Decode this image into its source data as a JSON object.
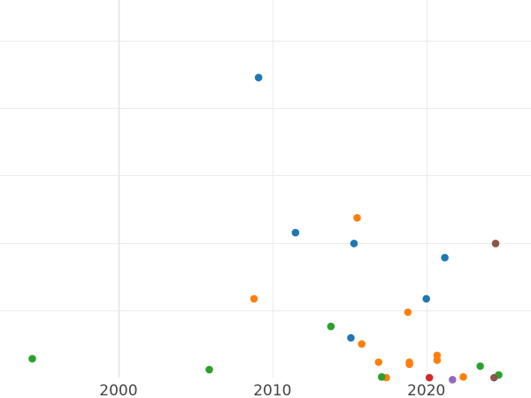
{
  "chart_data": {
    "type": "scatter",
    "title": "",
    "xlabel": "",
    "ylabel": "",
    "xlim": [
      1992.3,
      2026.8
    ],
    "ylim": [
      0,
      56
    ],
    "x_ticks": [
      2000,
      2010,
      2020
    ],
    "x_tick_labels": [
      "2000",
      "2010",
      "2020"
    ],
    "y_gridlines": [
      10,
      20,
      30,
      40,
      50
    ],
    "grid": true,
    "legend": "none",
    "series": [
      {
        "color": "#1f77b4",
        "points": [
          {
            "x": 2009.1,
            "y": 44.5
          },
          {
            "x": 2011.5,
            "y": 21.5
          },
          {
            "x": 2015.3,
            "y": 19.9
          },
          {
            "x": 2021.2,
            "y": 17.8
          },
          {
            "x": 2020.0,
            "y": 11.7
          },
          {
            "x": 2015.1,
            "y": 5.9
          }
        ]
      },
      {
        "color": "#ff7f0e",
        "points": [
          {
            "x": 2015.5,
            "y": 23.7
          },
          {
            "x": 2008.8,
            "y": 11.7
          },
          {
            "x": 2018.8,
            "y": 9.7
          },
          {
            "x": 2015.8,
            "y": 5.0
          },
          {
            "x": 2020.7,
            "y": 3.3
          },
          {
            "x": 2020.7,
            "y": 2.6
          },
          {
            "x": 2016.9,
            "y": 2.3
          },
          {
            "x": 2018.9,
            "y": 2.3
          },
          {
            "x": 2018.9,
            "y": 2.0
          },
          {
            "x": 2022.4,
            "y": 0.1
          },
          {
            "x": 2017.4,
            "y": 0.0
          }
        ]
      },
      {
        "color": "#2ca02c",
        "points": [
          {
            "x": 1994.4,
            "y": 2.8
          },
          {
            "x": 2005.9,
            "y": 1.2
          },
          {
            "x": 2013.8,
            "y": 7.6
          },
          {
            "x": 2023.5,
            "y": 1.7
          },
          {
            "x": 2024.7,
            "y": 0.4
          },
          {
            "x": 2017.1,
            "y": 0.1
          }
        ]
      },
      {
        "color": "#d62728",
        "points": [
          {
            "x": 2020.2,
            "y": 0.0
          }
        ]
      },
      {
        "color": "#9467bd",
        "points": [
          {
            "x": 2021.7,
            "y": -0.3
          }
        ]
      },
      {
        "color": "#8c564b",
        "points": [
          {
            "x": 2024.5,
            "y": 19.9
          },
          {
            "x": 2024.4,
            "y": 0.0
          }
        ]
      }
    ]
  }
}
